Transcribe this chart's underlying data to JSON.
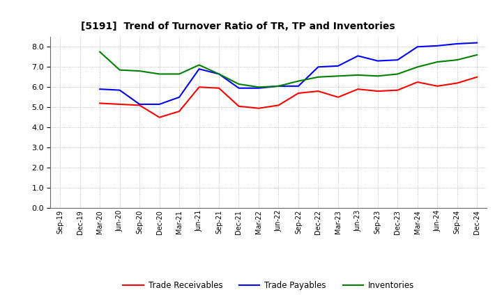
{
  "title": "[5191]  Trend of Turnover Ratio of TR, TP and Inventories",
  "x_labels": [
    "Sep-19",
    "Dec-19",
    "Mar-20",
    "Jun-20",
    "Sep-20",
    "Dec-20",
    "Mar-21",
    "Jun-21",
    "Sep-21",
    "Dec-21",
    "Mar-22",
    "Jun-22",
    "Sep-22",
    "Dec-22",
    "Mar-23",
    "Jun-23",
    "Sep-23",
    "Dec-23",
    "Mar-24",
    "Jun-24",
    "Sep-24",
    "Dec-24"
  ],
  "trade_receivables": [
    null,
    null,
    5.2,
    5.15,
    5.1,
    4.5,
    4.8,
    6.0,
    5.95,
    5.05,
    4.95,
    5.1,
    5.7,
    5.8,
    5.5,
    5.9,
    5.8,
    5.85,
    6.25,
    6.05,
    6.2,
    6.5
  ],
  "trade_payables": [
    null,
    null,
    5.9,
    5.85,
    5.15,
    5.15,
    5.5,
    6.9,
    6.65,
    5.95,
    5.95,
    6.05,
    6.05,
    7.0,
    7.05,
    7.55,
    7.3,
    7.35,
    8.0,
    8.05,
    8.15,
    8.2
  ],
  "inventories": [
    null,
    null,
    7.75,
    6.85,
    6.8,
    6.65,
    6.65,
    7.1,
    6.65,
    6.15,
    6.0,
    6.05,
    6.3,
    6.5,
    6.55,
    6.6,
    6.55,
    6.65,
    7.0,
    7.25,
    7.35,
    7.6
  ],
  "tr_color": "#ff0000",
  "tp_color": "#0000ff",
  "inv_color": "#008000",
  "ylim": [
    0,
    8.5
  ],
  "yticks": [
    0.0,
    1.0,
    2.0,
    3.0,
    4.0,
    5.0,
    6.0,
    7.0,
    8.0
  ],
  "legend_labels": [
    "Trade Receivables",
    "Trade Payables",
    "Inventories"
  ],
  "background_color": "#ffffff",
  "grid_color": "#aaaaaa"
}
